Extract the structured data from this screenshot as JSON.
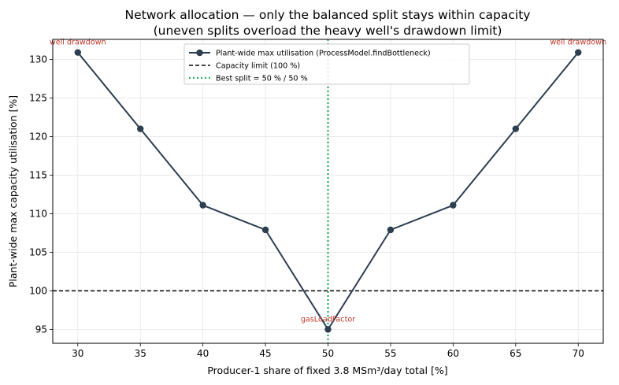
{
  "chart_data": {
    "type": "line",
    "title": "Network allocation — only the balanced split stays within capacity",
    "subtitle": "(uneven splits overload the heavy well's drawdown limit)",
    "xlabel": "Producer-1 share of fixed 3.8 MSm³/day total [%]",
    "ylabel": "Plant-wide max capacity utilisation [%]",
    "xlim": [
      28,
      72
    ],
    "ylim": [
      93.2,
      132.6
    ],
    "xticks": [
      30,
      35,
      40,
      45,
      50,
      55,
      60,
      65,
      70
    ],
    "yticks": [
      95,
      100,
      105,
      110,
      115,
      120,
      125,
      130
    ],
    "grid": true,
    "legend_position": "top-center",
    "series": [
      {
        "name": "Plant-wide max utilisation (ProcessModel.findBottleneck)",
        "color": "#2c3e50",
        "x": [
          30,
          35,
          40,
          45,
          50,
          55,
          60,
          65,
          70
        ],
        "y": [
          130.9,
          121.0,
          111.1,
          107.9,
          95.0,
          107.9,
          111.1,
          121.0,
          130.9
        ]
      }
    ],
    "reference_lines": [
      {
        "name": "Capacity limit (100 %)",
        "orientation": "horizontal",
        "value": 100,
        "color": "#000000",
        "style": "dashed"
      },
      {
        "name": "Best split = 50 % / 50 %",
        "orientation": "vertical",
        "value": 50,
        "color": "#27ae60",
        "style": "dotted"
      }
    ],
    "annotations": [
      {
        "text": "well drawdown",
        "x": 30,
        "y": 130.9,
        "color": "#c0392b"
      },
      {
        "text": "gasLoadFactor",
        "x": 50,
        "y": 95.0,
        "color": "#c0392b"
      },
      {
        "text": "well drawdown",
        "x": 70,
        "y": 130.9,
        "color": "#c0392b"
      }
    ]
  }
}
